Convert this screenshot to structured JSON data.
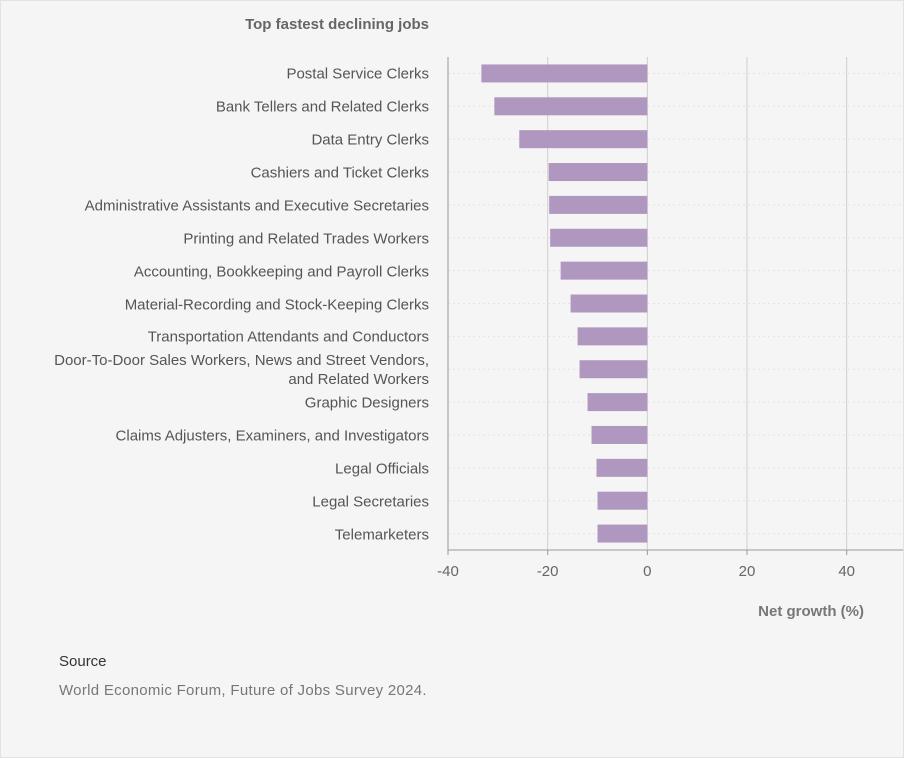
{
  "chart_data": {
    "type": "bar",
    "title": "Top fastest declining jobs",
    "categories": [
      "Postal Service Clerks",
      "Bank Tellers and Related Clerks",
      "Data Entry Clerks",
      "Cashiers and Ticket Clerks",
      "Administrative Assistants and Executive Secretaries",
      "Printing and Related Trades Workers",
      "Accounting, Bookkeeping and Payroll Clerks",
      "Material-Recording and Stock-Keeping Clerks",
      "Transportation Attendants and Conductors",
      "Door-To-Door Sales Workers, News and Street Vendors, and Related Workers",
      "Graphic Designers",
      "Claims Adjusters, Examiners, and Investigators",
      "Legal Officials",
      "Legal Secretaries",
      "Telemarketers"
    ],
    "values": [
      -33.3,
      -30.7,
      -25.7,
      -19.8,
      -19.7,
      -19.5,
      -17.4,
      -15.4,
      -14,
      -13.6,
      -12,
      -11.2,
      -10.2,
      -10,
      -10
    ],
    "color": "#b097c0",
    "xlabel": "Net growth (%)",
    "xlim": [
      -40,
      51.3
    ],
    "xticks": [
      -40,
      -20,
      0,
      20,
      40
    ],
    "grid": true
  },
  "source": {
    "heading": "Source",
    "text": "World Economic Forum, Future of Jobs Survey 2024."
  }
}
